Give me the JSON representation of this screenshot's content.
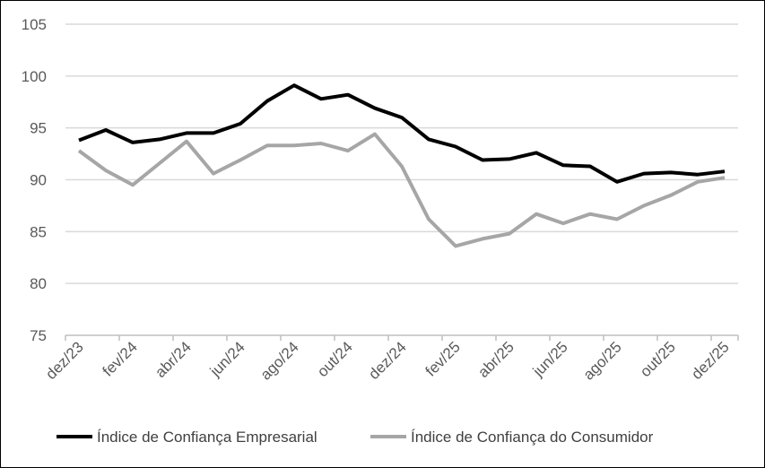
{
  "chart_data": {
    "type": "line",
    "title": "",
    "xlabel": "",
    "ylabel": "",
    "ylim": [
      75,
      105
    ],
    "y_ticks": [
      75,
      80,
      85,
      90,
      95,
      100,
      105
    ],
    "x_tick_labels": [
      "dez/23",
      "fev/24",
      "abr/24",
      "jun/24",
      "ago/24",
      "out/24",
      "dez/24",
      "fev/25",
      "abr/25",
      "jun/25",
      "ago/25",
      "out/25",
      "dez/25"
    ],
    "grid": true,
    "legend_position": "bottom",
    "series": [
      {
        "name": "Índice de Confiança Empresarial",
        "color": "#000000",
        "values": [
          93.8,
          94.8,
          93.6,
          93.9,
          94.5,
          94.5,
          95.4,
          97.6,
          99.1,
          97.8,
          98.2,
          96.9,
          96.0,
          93.9,
          93.2,
          91.9,
          92.0,
          92.6,
          91.4,
          91.3,
          89.8,
          90.6,
          90.7,
          90.5,
          90.8
        ]
      },
      {
        "name": "Índice de Confiança do Consumidor",
        "color": "#A6A6A6",
        "values": [
          92.8,
          90.9,
          89.5,
          91.6,
          93.7,
          90.6,
          91.9,
          93.3,
          93.3,
          93.5,
          92.8,
          94.4,
          91.3,
          86.2,
          83.6,
          84.3,
          84.8,
          86.7,
          85.8,
          86.7,
          86.2,
          87.5,
          88.5,
          89.8,
          90.2
        ]
      }
    ]
  }
}
